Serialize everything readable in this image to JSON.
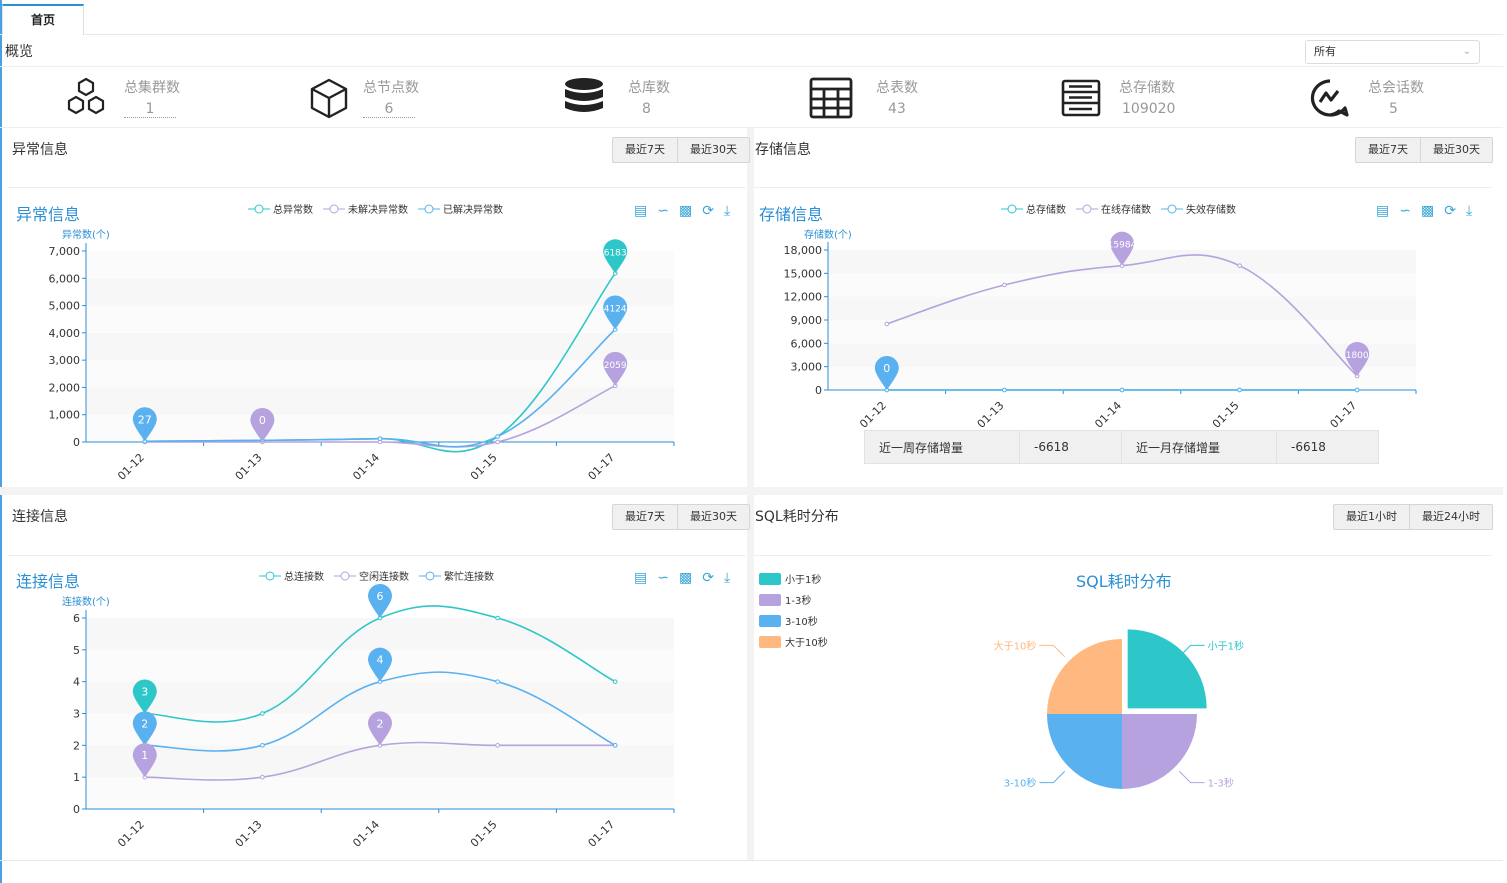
{
  "tab": "首页",
  "overview_title": "概览",
  "filter_select": "所有",
  "stats": [
    {
      "label": "总集群数",
      "value": "1",
      "icon": "cluster-icon"
    },
    {
      "label": "总节点数",
      "value": "6",
      "icon": "cube-icon"
    },
    {
      "label": "总库数",
      "value": "8",
      "icon": "database-icon"
    },
    {
      "label": "总表数",
      "value": "43",
      "icon": "table-icon"
    },
    {
      "label": "总存储数",
      "value": "109020",
      "icon": "storage-icon"
    },
    {
      "label": "总会话数",
      "value": "5",
      "icon": "session-icon"
    }
  ],
  "colors": {
    "teal": "#2ec7c9",
    "purple": "#b6a2de",
    "blue": "#5ab1ef",
    "orange": "#ffb980",
    "title_blue": "#2a8fd4"
  },
  "panels": {
    "exception": {
      "head": "异常信息",
      "btn1": "最近7天",
      "btn2": "最近30天",
      "chart_title": "异常信息",
      "y_label": "异常数(个)",
      "legend": [
        "总异常数",
        "未解决异常数",
        "已解决异常数"
      ]
    },
    "storage": {
      "head": "存储信息",
      "btn1": "最近7天",
      "btn2": "最近30天",
      "chart_title": "存储信息",
      "y_label": "存储数(个)",
      "legend": [
        "总存储数",
        "在线存储数",
        "失效存储数"
      ],
      "increase": {
        "week_label": "近一周存储增量",
        "week_value": "-6618",
        "month_label": "近一月存储增量",
        "month_value": "-6618"
      }
    },
    "connection": {
      "head": "连接信息",
      "btn1": "最近7天",
      "btn2": "最近30天",
      "chart_title": "连接信息",
      "y_label": "连接数(个)",
      "legend": [
        "总连接数",
        "空闲连接数",
        "繁忙连接数"
      ]
    },
    "sql": {
      "head": "SQL耗时分布",
      "btn1": "最近1小时",
      "btn2": "最近24小时",
      "chart_title": "SQL耗时分布",
      "legend": [
        "小于1秒",
        "1-3秒",
        "3-10秒",
        "大于10秒"
      ]
    }
  },
  "chart_data": [
    {
      "type": "line",
      "title": "异常信息",
      "ylabel": "异常数(个)",
      "ylim": [
        0,
        7000
      ],
      "categories": [
        "01-12",
        "01-13",
        "01-14",
        "01-15",
        "01-17"
      ],
      "yticks": [
        "0",
        "1,000",
        "2,000",
        "3,000",
        "4,000",
        "5,000",
        "6,000",
        "7,000"
      ],
      "series": [
        {
          "name": "总异常数",
          "color": "#2ec7c9",
          "values": [
            27,
            60,
            120,
            200,
            6183
          ]
        },
        {
          "name": "未解决异常数",
          "color": "#b6a2de",
          "values": [
            0,
            0,
            0,
            0,
            2059
          ]
        },
        {
          "name": "已解决异常数",
          "color": "#5ab1ef",
          "values": [
            27,
            60,
            120,
            200,
            4124
          ]
        }
      ],
      "markers": [
        {
          "x": 0,
          "value": 27,
          "label": "27",
          "color": "#5ab1ef"
        },
        {
          "x": 1,
          "value": 0,
          "label": "0",
          "color": "#b6a2de"
        },
        {
          "x": 4,
          "value": 6183,
          "label": "6183",
          "color": "#2ec7c9"
        },
        {
          "x": 4,
          "value": 4124,
          "label": "4124",
          "color": "#5ab1ef"
        },
        {
          "x": 4,
          "value": 2059,
          "label": "2059",
          "color": "#b6a2de"
        }
      ]
    },
    {
      "type": "line",
      "title": "存储信息",
      "ylabel": "存储数(个)",
      "ylim": [
        0,
        18000
      ],
      "categories": [
        "01-12",
        "01-13",
        "01-14",
        "01-15",
        "01-17"
      ],
      "yticks": [
        "0",
        "3,000",
        "6,000",
        "9,000",
        "12,000",
        "15,000",
        "18,000"
      ],
      "series": [
        {
          "name": "总存储数",
          "color": "#2ec7c9",
          "values": [
            0,
            0,
            0,
            0,
            0
          ]
        },
        {
          "name": "在线存储数",
          "color": "#b6a2de",
          "values": [
            8500,
            13500,
            15984,
            15984,
            1800
          ]
        },
        {
          "name": "失效存储数",
          "color": "#5ab1ef",
          "values": [
            0,
            0,
            0,
            0,
            0
          ]
        }
      ],
      "markers": [
        {
          "x": 0,
          "value": 0,
          "label": "0",
          "color": "#5ab1ef"
        },
        {
          "x": 2,
          "value": 15984,
          "label": "15984",
          "color": "#b6a2de"
        },
        {
          "x": 4,
          "value": 1800,
          "label": "1800",
          "color": "#b6a2de"
        }
      ]
    },
    {
      "type": "line",
      "title": "连接信息",
      "ylabel": "连接数(个)",
      "ylim": [
        0,
        6
      ],
      "categories": [
        "01-12",
        "01-13",
        "01-14",
        "01-15",
        "01-17"
      ],
      "yticks": [
        "0",
        "1",
        "2",
        "3",
        "4",
        "5",
        "6"
      ],
      "series": [
        {
          "name": "总连接数",
          "color": "#2ec7c9",
          "values": [
            3,
            3,
            6,
            6,
            4
          ]
        },
        {
          "name": "空闲连接数",
          "color": "#b6a2de",
          "values": [
            1,
            1,
            2,
            2,
            2
          ]
        },
        {
          "name": "繁忙连接数",
          "color": "#5ab1ef",
          "values": [
            2,
            2,
            4,
            4,
            2
          ]
        }
      ],
      "markers": [
        {
          "x": 0,
          "value": 3,
          "label": "3",
          "color": "#2ec7c9"
        },
        {
          "x": 0,
          "value": 2,
          "label": "2",
          "color": "#5ab1ef"
        },
        {
          "x": 0,
          "value": 1,
          "label": "1",
          "color": "#b6a2de"
        },
        {
          "x": 2,
          "value": 6,
          "label": "6",
          "color": "#5ab1ef"
        },
        {
          "x": 2,
          "value": 4,
          "label": "4",
          "color": "#5ab1ef"
        },
        {
          "x": 2,
          "value": 2,
          "label": "2",
          "color": "#b6a2de"
        }
      ]
    },
    {
      "type": "pie",
      "title": "SQL耗时分布",
      "slices": [
        {
          "name": "小于1秒",
          "value": 25,
          "color": "#2ec7c9"
        },
        {
          "name": "1-3秒",
          "value": 25,
          "color": "#b6a2de"
        },
        {
          "name": "3-10秒",
          "value": 25,
          "color": "#5ab1ef"
        },
        {
          "name": "大于10秒",
          "value": 25,
          "color": "#ffb980"
        }
      ]
    }
  ]
}
